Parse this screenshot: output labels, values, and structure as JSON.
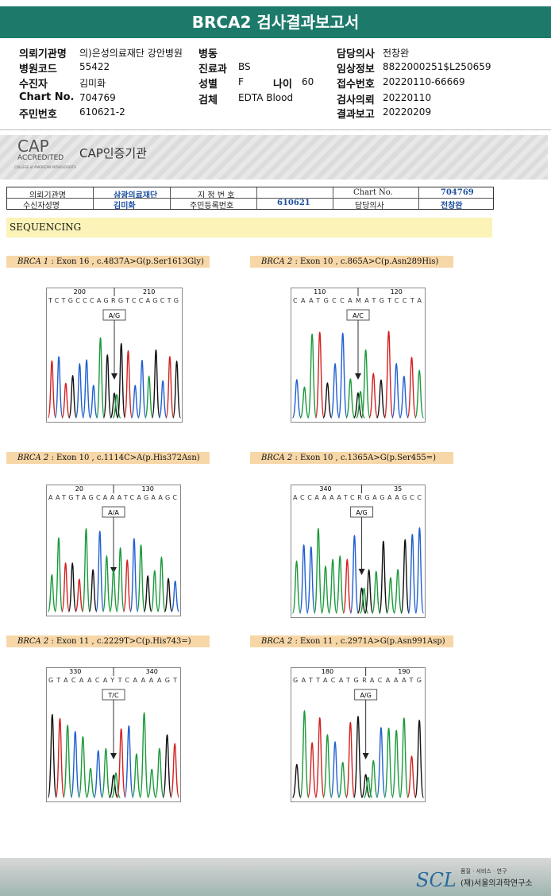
{
  "header": {
    "title": "BRCA2 검사결과보고서"
  },
  "info": {
    "left": [
      {
        "label": "의뢰기관명",
        "value": "의)은성의료재단 강안병원"
      },
      {
        "label": "병원코드",
        "value": "55422"
      },
      {
        "label": "수진자",
        "value": "김미화"
      },
      {
        "label": "Chart No.",
        "value": "704769"
      },
      {
        "label": "주민번호",
        "value": "610621-2"
      }
    ],
    "middle": [
      {
        "label": "병동"
      },
      {
        "label": "진료과",
        "value": "BS"
      },
      {
        "label": "성별",
        "value": "F",
        "label2": "나이",
        "value2": "60"
      },
      {
        "label": "검체",
        "value": "EDTA Blood"
      }
    ],
    "right": [
      {
        "label": "담당의사",
        "value": "전창완"
      },
      {
        "label": "임상정보",
        "value": "8822000251$L250659"
      },
      {
        "label": "접수번호",
        "value": "20220110-66669"
      },
      {
        "label": "검사의뢰",
        "value": "20220110"
      },
      {
        "label": "결과보고",
        "value": "20220209"
      }
    ]
  },
  "scan": {
    "cap": {
      "logo": "CAP",
      "accredited": "ACCREDITED",
      "college": "COLLEGE of AMERICAN PATHOLOGISTS",
      "title": "CAP인증기관"
    },
    "table": {
      "rows": [
        [
          "의뢰기관명",
          "삼광의료재단",
          "지 정 번 호",
          "Chart No.",
          "704769"
        ],
        [
          "수신자성명",
          "김미화",
          "주민등록번호",
          "610621",
          "담당의사",
          "전창완"
        ]
      ]
    },
    "section": "SEQUENCING",
    "panels": [
      {
        "gene": "BRCA 1",
        "desc": " : Exon 16 , c.4837A>G(p.Ser1613Gly)",
        "pos": [
          "200",
          "210"
        ],
        "sequence": "TCTGCCCAGRGTCCAGCTG",
        "call": "A/G"
      },
      {
        "gene": "BRCA 2",
        "desc": " : Exon 10 , c.865A>C(p.Asn289His)",
        "pos": [
          "110",
          "120"
        ],
        "sequence": "CAATGCCAMATGTCCTA",
        "call": "A/C"
      },
      {
        "gene": "BRCA 2",
        "desc": " : Exon 10 , c.1114C>A(p.His372Asn)",
        "pos": [
          "20",
          "130"
        ],
        "sequence": "AATGTAGCAAATCAGAAGC",
        "call": "A/A"
      },
      {
        "gene": "BRCA 2",
        "desc": " : Exon 10 , c.1365A>G(p.Ser455=)",
        "pos": [
          "340",
          "35"
        ],
        "sequence": "ACCAAAATCRGAGAAGCC",
        "call": "A/G"
      },
      {
        "gene": "BRCA 2",
        "desc": " : Exon 11 , c.2229T>C(p.His743=)",
        "pos": [
          "330",
          "340"
        ],
        "sequence": "GTACAACAYTCAAAAGT",
        "call": "T/C"
      },
      {
        "gene": "BRCA 2",
        "desc": " : Exon 11 , c.2971A>G(p.Asn991Asp)",
        "pos": [
          "180",
          "190"
        ],
        "sequence": "GATTACATGRACAAATG",
        "call": "A/G"
      }
    ]
  },
  "footer": {
    "logo": "SCL",
    "tagline": "품질 · 서비스 · 연구",
    "org": "(재)서울의과학연구소"
  }
}
